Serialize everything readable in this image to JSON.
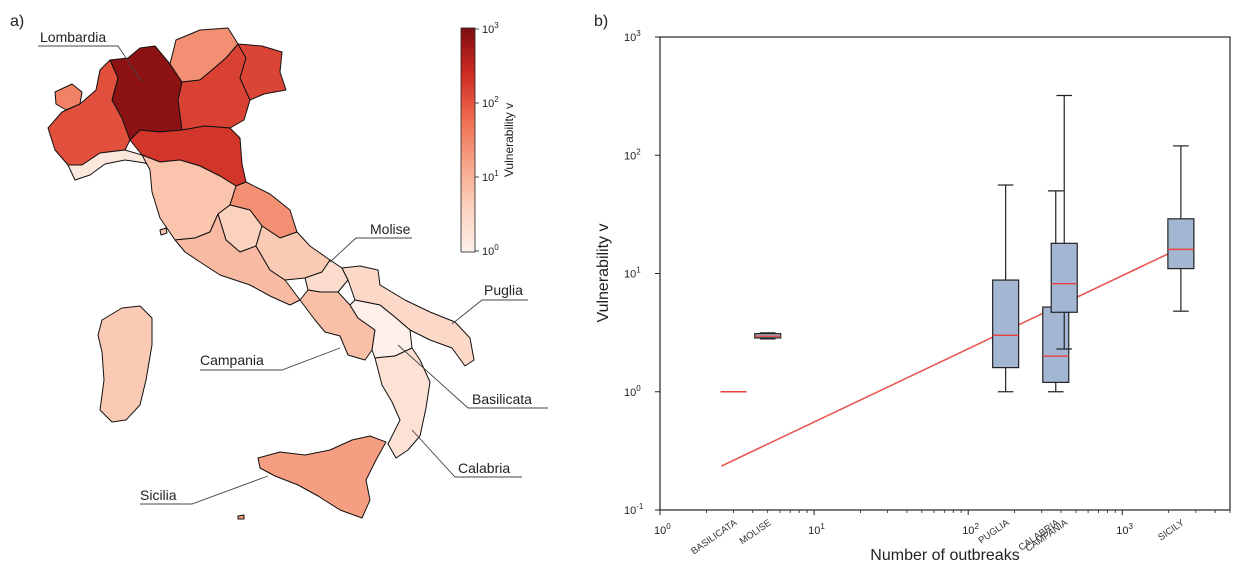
{
  "panel_a": {
    "letter": "a)",
    "colorbar": {
      "label": "Vulnerability v",
      "scale": "log",
      "range": [
        1,
        1000
      ],
      "tick_base": "10",
      "tick_exponents": [
        "3",
        "2",
        "1",
        "0"
      ],
      "color_low": "#fdf0ea",
      "color_high": "#7f0d10"
    },
    "callouts": [
      {
        "name": "Lombardia"
      },
      {
        "name": "Molise"
      },
      {
        "name": "Puglia"
      },
      {
        "name": "Campania"
      },
      {
        "name": "Basilicata"
      },
      {
        "name": "Calabria"
      },
      {
        "name": "Sicilia"
      }
    ],
    "region_vulnerability": {
      "lombardia": 800,
      "piemonte": 110,
      "valle_daosta": 35,
      "trentino": 25,
      "veneto": 150,
      "friuli": 140,
      "liguria": 1.5,
      "emilia": 200,
      "toscana": 6,
      "umbria": 4,
      "marche": 25,
      "lazio": 8,
      "abruzzo": 5,
      "molise": 2.5,
      "campania": 7,
      "puglia": 3,
      "basilicata": 1,
      "calabria": 2,
      "sicilia": 18,
      "sardegna": 5
    }
  },
  "chart_data": {
    "type": "box",
    "letter": "b)",
    "xlabel": "Number of outbreaks",
    "ylabel": "Vulnerability v",
    "xscale": "log",
    "yscale": "log",
    "xlim": [
      1,
      5000
    ],
    "ylim": [
      0.1,
      1000
    ],
    "tick_base": "10",
    "x_ticks": [
      {
        "v": 1,
        "exp": "0"
      },
      {
        "v": 10,
        "exp": "1"
      },
      {
        "v": 100,
        "exp": "2"
      },
      {
        "v": 1000,
        "exp": "3"
      }
    ],
    "y_ticks": [
      {
        "v": 0.1,
        "exp": "-1"
      },
      {
        "v": 1,
        "exp": "0"
      },
      {
        "v": 10,
        "exp": "1"
      },
      {
        "v": 100,
        "exp": "2"
      },
      {
        "v": 1000,
        "exp": "3"
      }
    ],
    "boxes": [
      {
        "category": "BASILICATA",
        "x": 3,
        "q1": 1.0,
        "median": 1.0,
        "q3": 1.0,
        "whisker_low": 1.0,
        "whisker_high": 1.0
      },
      {
        "category": "MOLISE",
        "x": 5,
        "q1": 2.85,
        "median": 2.95,
        "q3": 3.1,
        "whisker_low": 2.8,
        "whisker_high": 3.15
      },
      {
        "category": "PUGLIA",
        "x": 175,
        "q1": 1.6,
        "median": 3.0,
        "q3": 8.8,
        "whisker_low": 1.0,
        "whisker_high": 56
      },
      {
        "category": "CALABRIA",
        "x": 370,
        "q1": 1.2,
        "median": 2.0,
        "q3": 5.2,
        "whisker_low": 1.0,
        "whisker_high": 50
      },
      {
        "category": "CAMPANIA",
        "x": 420,
        "q1": 4.7,
        "median": 8.2,
        "q3": 18,
        "whisker_low": 2.3,
        "whisker_high": 320
      },
      {
        "category": "SICILY",
        "x": 2400,
        "q1": 11,
        "median": 16,
        "q3": 29,
        "whisker_low": 4.8,
        "whisker_high": 120
      }
    ],
    "fit_line": {
      "x": [
        2.5,
        2400
      ],
      "y": [
        0.235,
        16.5
      ]
    },
    "colors": {
      "box_fill": "#a3b7d3",
      "median": "#e8403a",
      "fit": "#e85a55",
      "stroke": "#222222"
    }
  }
}
